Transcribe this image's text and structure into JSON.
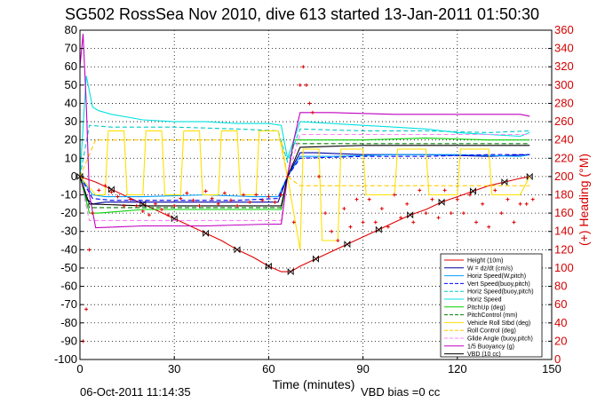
{
  "chart_data": {
    "type": "line",
    "title": "SG502 RossSea Nov 2010, dive 613 started 13-Jan-2011 01:50:30",
    "xlabel": "Time (minutes)",
    "ylabel": "",
    "y2label": "(+) Heading (°M)",
    "xlim": [
      0,
      150
    ],
    "ylim": [
      -100,
      80
    ],
    "y2lim": [
      0,
      360
    ],
    "x_ticks": [
      0,
      30,
      60,
      90,
      120,
      150
    ],
    "y_ticks": [
      -100,
      -90,
      -80,
      -70,
      -60,
      -50,
      -40,
      -30,
      -20,
      -10,
      0,
      10,
      20,
      30,
      40,
      50,
      60,
      70,
      80
    ],
    "y2_ticks": [
      0,
      20,
      40,
      60,
      80,
      100,
      120,
      140,
      160,
      180,
      200,
      220,
      240,
      260,
      280,
      300,
      320,
      340,
      360
    ],
    "grid": true,
    "legend_position": "bottom-right",
    "series": [
      {
        "name": "Height (10m)",
        "color": "#e00000",
        "style": "solid",
        "markers": "bowtie",
        "x": [
          0,
          5,
          10,
          15,
          20,
          25,
          30,
          35,
          40,
          45,
          50,
          55,
          60,
          64,
          67,
          70,
          75,
          80,
          85,
          90,
          95,
          100,
          105,
          110,
          115,
          120,
          125,
          130,
          135,
          140,
          143
        ],
        "y": [
          0,
          -3,
          -7,
          -11,
          -15,
          -19,
          -23,
          -27,
          -31,
          -35,
          -40,
          -44,
          -49,
          -52,
          -52,
          -49,
          -45,
          -41,
          -37,
          -33,
          -29,
          -25,
          -21,
          -18,
          -14,
          -11,
          -8,
          -5,
          -3,
          -1,
          0
        ]
      },
      {
        "name": "W = dz/dt (cm/s)",
        "color": "#0000a0",
        "style": "solid",
        "x": [
          0,
          2,
          4,
          8,
          20,
          40,
          55,
          63,
          66,
          70,
          75,
          90,
          110,
          130,
          143
        ],
        "y": [
          0,
          -12,
          -15,
          -14,
          -14,
          -14,
          -14,
          -14,
          0,
          13,
          13,
          12,
          12,
          11,
          12
        ]
      },
      {
        "name": "Horiz Speed(W,pitch)",
        "color": "#00a0ff",
        "style": "solid",
        "x": [
          0,
          4,
          8,
          20,
          40,
          55,
          63,
          66,
          70,
          80,
          100,
          120,
          140,
          143
        ],
        "y": [
          0,
          -10,
          -11,
          -11,
          -10,
          -11,
          -11,
          0,
          11,
          11,
          12,
          12,
          11,
          12
        ]
      },
      {
        "name": "Vert Speed(buoy,pitch)",
        "color": "#0000ff",
        "style": "dashed",
        "x": [
          0,
          4,
          10,
          30,
          50,
          63,
          66,
          70,
          90,
          110,
          130,
          143
        ],
        "y": [
          0,
          -12,
          -13,
          -13,
          -13,
          -12,
          0,
          10,
          11,
          11,
          12,
          12
        ]
      },
      {
        "name": "Horiz Speed(buoy,pitch)",
        "color": "#00c8c8",
        "style": "dashed",
        "x": [
          0,
          3,
          10,
          30,
          50,
          63,
          66,
          70,
          90,
          110,
          130,
          143
        ],
        "y": [
          0,
          28,
          27,
          27,
          26,
          25,
          8,
          26,
          25,
          25,
          24,
          25
        ]
      },
      {
        "name": "Horiz Speed",
        "color": "#00e0e0",
        "style": "solid",
        "x": [
          0,
          2,
          4,
          6,
          10,
          20,
          30,
          40,
          50,
          60,
          64,
          66,
          68,
          70,
          80,
          90,
          100,
          110,
          120,
          130,
          140,
          143
        ],
        "y": [
          0,
          55,
          38,
          36,
          34,
          31,
          30,
          30,
          29,
          29,
          28,
          10,
          20,
          30,
          29,
          28,
          27,
          26,
          24,
          23,
          22,
          24
        ]
      },
      {
        "name": "PitchUp (deg)",
        "color": "#00d000",
        "style": "solid",
        "x": [
          0,
          3,
          6,
          20,
          40,
          60,
          64,
          66,
          68,
          72,
          90,
          110,
          130,
          143
        ],
        "y": [
          0,
          -20,
          -20,
          -18,
          -18,
          -18,
          -18,
          0,
          20,
          20,
          20,
          21,
          20,
          20
        ]
      },
      {
        "name": "PitchControl (mm)",
        "color": "#008000",
        "style": "dashed",
        "x": [
          0,
          3,
          20,
          40,
          60,
          64,
          66,
          68,
          72,
          100,
          130,
          143
        ],
        "y": [
          0,
          -17,
          -17,
          -17,
          -17,
          -17,
          0,
          18,
          18,
          18,
          18,
          18
        ]
      },
      {
        "name": "Vehicle Roll Stbd (deg)",
        "color": "#ffe000",
        "style": "solid",
        "x": [
          0,
          5,
          8,
          9,
          14,
          15,
          20,
          21,
          26,
          27,
          32,
          33,
          38,
          39,
          44,
          45,
          50,
          51,
          56,
          57,
          63,
          66,
          70,
          71,
          76,
          77,
          82,
          83,
          90,
          91,
          100,
          101,
          110,
          111,
          120,
          121,
          130,
          131,
          140,
          143
        ],
        "y": [
          0,
          -10,
          -10,
          25,
          25,
          -10,
          -10,
          25,
          25,
          -10,
          -10,
          25,
          25,
          -10,
          -10,
          25,
          25,
          -10,
          -10,
          25,
          25,
          0,
          -40,
          15,
          15,
          -35,
          -35,
          15,
          15,
          -10,
          -10,
          15,
          15,
          -10,
          -10,
          15,
          15,
          -10,
          -10,
          0
        ]
      },
      {
        "name": "Roll Control (deg)",
        "color": "#ffcc00",
        "style": "dashed",
        "x": [
          0,
          5,
          20,
          40,
          60,
          64,
          66,
          70,
          100,
          130,
          143
        ],
        "y": [
          0,
          20,
          20,
          20,
          20,
          20,
          0,
          -5,
          -5,
          -5,
          -5
        ]
      },
      {
        "name": "Glide Angle (buoy,pitch)",
        "color": "#ff80ff",
        "style": "dashed",
        "x": [
          0,
          3,
          20,
          40,
          60,
          64,
          66,
          70,
          100,
          130,
          143
        ],
        "y": [
          0,
          -24,
          -24,
          -24,
          -24,
          -24,
          0,
          23,
          23,
          23,
          23
        ]
      },
      {
        "name": "1/5 Buoyancy (g)",
        "color": "#c000c0",
        "style": "solid",
        "x": [
          0,
          1,
          2,
          3,
          5,
          20,
          40,
          60,
          64,
          66,
          68,
          70,
          80,
          100,
          120,
          140,
          143
        ],
        "y": [
          60,
          78,
          40,
          -10,
          -28,
          -27,
          -27,
          -26,
          -26,
          0,
          20,
          35,
          35,
          34,
          34,
          34,
          33
        ]
      },
      {
        "name": "VBD (10 cc)",
        "color": "#000000",
        "style": "solid",
        "x": [
          0,
          3,
          20,
          40,
          60,
          64,
          66,
          70,
          90,
          110,
          130,
          143
        ],
        "y": [
          0,
          -15,
          -16,
          -16,
          -16,
          -16,
          0,
          16,
          17,
          17,
          17,
          17
        ]
      }
    ],
    "heading": {
      "name": "Heading (°M)",
      "axis": "right",
      "color": "#e00000",
      "marker": "plus",
      "x": [
        1,
        2,
        3,
        4,
        6,
        8,
        10,
        12,
        14,
        16,
        18,
        20,
        22,
        24,
        26,
        28,
        30,
        32,
        34,
        36,
        38,
        40,
        42,
        44,
        46,
        48,
        50,
        52,
        54,
        56,
        58,
        60,
        62,
        64,
        66,
        68,
        70,
        71,
        72,
        73,
        74,
        76,
        78,
        80,
        82,
        84,
        86,
        88,
        90,
        92,
        94,
        96,
        98,
        100,
        102,
        104,
        106,
        108,
        110,
        112,
        114,
        116,
        118,
        120,
        122,
        124,
        126,
        128,
        130,
        132,
        134,
        136,
        138,
        140,
        142,
        144
      ],
      "y": [
        20,
        55,
        120,
        160,
        185,
        190,
        183,
        178,
        168,
        175,
        168,
        162,
        158,
        170,
        164,
        158,
        168,
        176,
        182,
        174,
        168,
        184,
        176,
        170,
        182,
        174,
        168,
        180,
        172,
        180,
        174,
        178,
        172,
        180,
        200,
        150,
        300,
        320,
        300,
        280,
        270,
        200,
        160,
        140,
        130,
        165,
        145,
        175,
        150,
        175,
        150,
        165,
        145,
        180,
        155,
        170,
        150,
        185,
        160,
        175,
        155,
        185,
        160,
        175,
        160,
        180,
        150,
        170,
        145,
        185,
        160,
        175,
        150,
        170,
        170,
        175
      ]
    }
  },
  "notes": {
    "timestamp": "06-Oct-2011 11:14:35",
    "vbd_bias": "VBD bias =0 cc"
  }
}
